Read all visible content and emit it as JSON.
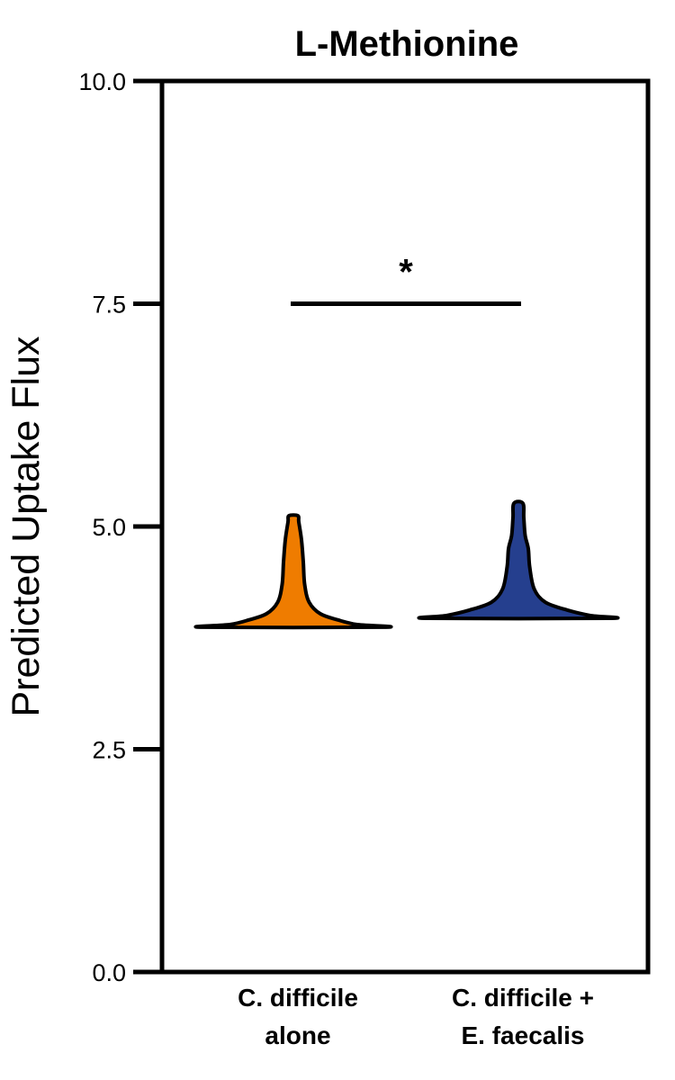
{
  "chart_data": {
    "type": "violin",
    "title": "L-Methionine",
    "xlabel": "",
    "ylabel": "Predicted Uptake Flux",
    "ylim": [
      0,
      10
    ],
    "yticks": [
      "0.0",
      "2.5",
      "5.0",
      "7.5",
      "10.0"
    ],
    "grid": false,
    "categories": [
      {
        "lines": [
          "C. difficile",
          "alone"
        ]
      },
      {
        "lines": [
          "C. difficile +",
          "E. faecalis"
        ]
      }
    ],
    "series": [
      {
        "color": "#EF7C00",
        "profile": [
          {
            "y": 3.87,
            "w": 0.2
          },
          {
            "y": 3.9,
            "w": 0.14
          },
          {
            "y": 3.95,
            "w": 0.1
          },
          {
            "y": 4.02,
            "w": 0.06
          },
          {
            "y": 4.15,
            "w": 0.035
          },
          {
            "y": 4.35,
            "w": 0.025
          },
          {
            "y": 4.6,
            "w": 0.022
          },
          {
            "y": 4.85,
            "w": 0.018
          },
          {
            "y": 5.05,
            "w": 0.012
          },
          {
            "y": 5.12,
            "w": 0.01
          }
        ]
      },
      {
        "color": "#253F8E",
        "profile": [
          {
            "y": 3.97,
            "w": 0.2
          },
          {
            "y": 4.0,
            "w": 0.16
          },
          {
            "y": 4.06,
            "w": 0.11
          },
          {
            "y": 4.15,
            "w": 0.06
          },
          {
            "y": 4.3,
            "w": 0.035
          },
          {
            "y": 4.55,
            "w": 0.025
          },
          {
            "y": 4.75,
            "w": 0.022
          },
          {
            "y": 4.9,
            "w": 0.015
          },
          {
            "y": 5.1,
            "w": 0.012
          },
          {
            "y": 5.26,
            "w": 0.01
          }
        ]
      }
    ],
    "annotations": [
      {
        "type": "significance",
        "text": "*",
        "y": 7.5,
        "between": [
          0,
          1
        ]
      }
    ]
  }
}
